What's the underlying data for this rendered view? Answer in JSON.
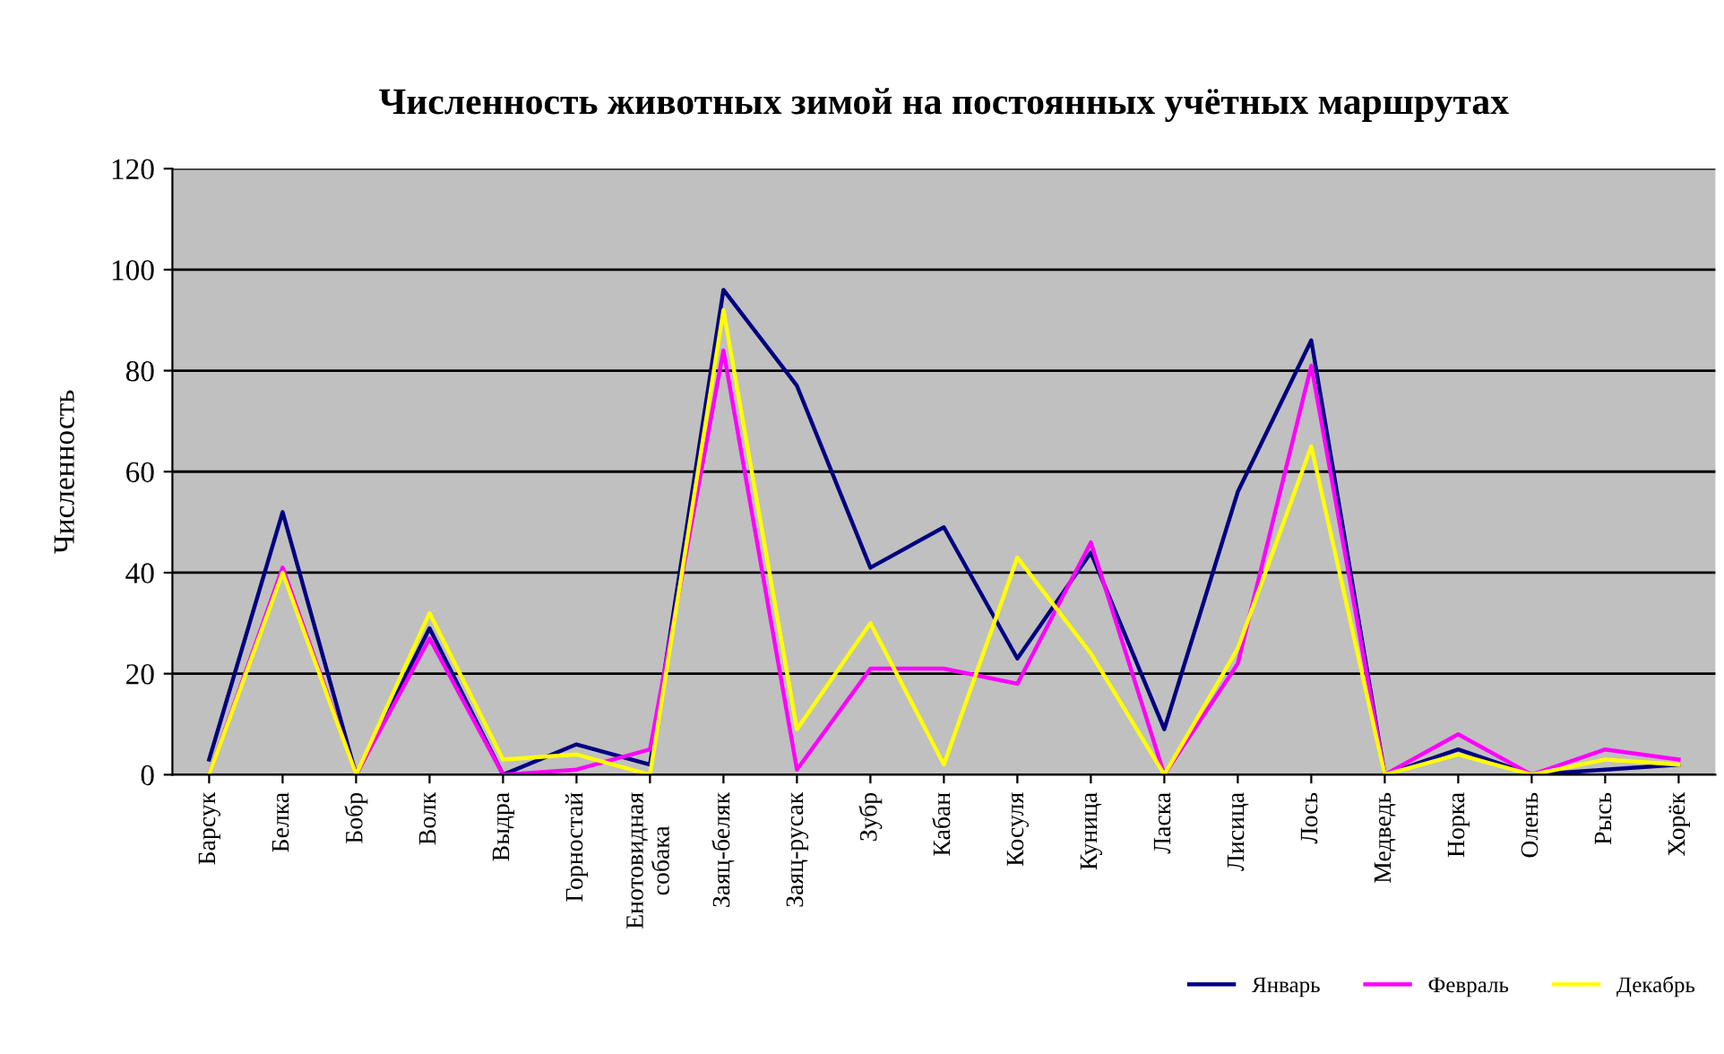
{
  "chart_data": {
    "type": "line",
    "title": "Численность животных зимой на постоянных учётных маршрутах",
    "ylabel": "Численность",
    "categories": [
      "Барсук",
      "Белка",
      "Бобр",
      "Волк",
      "Выдра",
      "Горностай",
      "Енотовидная\nсобака",
      "Заяц-беляк",
      "Заяц-русак",
      "Зубр",
      "Кабан",
      "Косуля",
      "Куница",
      "Ласка",
      "Лисица",
      "Лось",
      "Медведь",
      "Норка",
      "Олень",
      "Рысь",
      "Хорёк"
    ],
    "series": [
      {
        "name": "Январь",
        "color": "#000080",
        "values": [
          3,
          52,
          0,
          29,
          0,
          6,
          2,
          96,
          77,
          41,
          49,
          23,
          44,
          9,
          56,
          86,
          0,
          5,
          0,
          1,
          2
        ]
      },
      {
        "name": "Февраль",
        "color": "#ff00ff",
        "values": [
          0,
          41,
          0,
          27,
          0,
          1,
          5,
          84,
          1,
          21,
          21,
          18,
          46,
          0,
          22,
          81,
          0,
          8,
          0,
          5,
          3
        ]
      },
      {
        "name": "Декабрь",
        "color": "#ffff00",
        "values": [
          0,
          40,
          0,
          32,
          3,
          4,
          0,
          92,
          9,
          30,
          2,
          43,
          24,
          0,
          25,
          65,
          0,
          4,
          0,
          3,
          2
        ]
      }
    ],
    "ylim": [
      0,
      120
    ],
    "yticks": [
      0,
      20,
      40,
      60,
      80,
      100,
      120
    ],
    "grid": "y",
    "legend": "bottom right",
    "marker": "none",
    "line_style": "solid"
  }
}
